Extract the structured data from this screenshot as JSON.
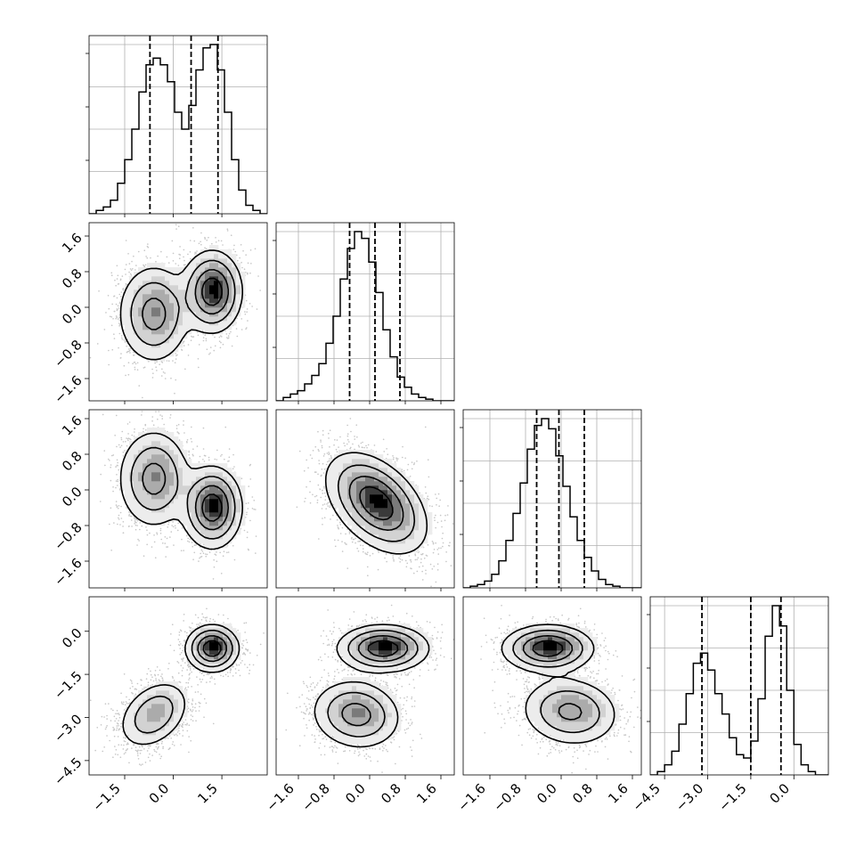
{
  "chart_data": {
    "type": "corner",
    "parameters": [
      {
        "id": "p0",
        "label": "",
        "range": [
          -2.6,
          2.9
        ],
        "ticks": [
          -1.5,
          0.0,
          1.5
        ],
        "tick_labels": [
          "−1.5",
          "0.0",
          "1.5"
        ],
        "quantiles": [
          -0.72,
          0.55,
          1.38
        ]
      },
      {
        "id": "p1",
        "label": "",
        "range": [
          -2.1,
          1.9
        ],
        "ticks": [
          -1.6,
          -0.8,
          0.0,
          0.8,
          1.6
        ],
        "tick_labels": [
          "−1.6",
          "−0.8",
          "0.0",
          "0.8",
          "1.6"
        ],
        "quantiles": [
          -0.45,
          0.12,
          0.68
        ]
      },
      {
        "id": "p2",
        "label": "",
        "range": [
          -2.2,
          1.8
        ],
        "ticks": [
          -1.6,
          -0.8,
          0.0,
          0.8,
          1.6
        ],
        "tick_labels": [
          "−1.6",
          "−0.8",
          "0.0",
          "0.8",
          "1.6"
        ],
        "quantiles": [
          -0.55,
          -0.05,
          0.52
        ]
      },
      {
        "id": "p3",
        "label": "",
        "range": [
          -5.0,
          1.2
        ],
        "ticks": [
          -4.5,
          -3.0,
          -1.5,
          0.0
        ],
        "tick_labels": [
          "−4.5",
          "−3.0",
          "−1.5",
          "0.0"
        ],
        "quantiles": [
          -3.2,
          -1.5,
          -0.45
        ]
      }
    ],
    "histograms": [
      {
        "param": "p0",
        "bin_start": -2.6,
        "bin_width": 0.22,
        "counts": [
          0,
          0.02,
          0.04,
          0.08,
          0.18,
          0.32,
          0.5,
          0.72,
          0.88,
          0.92,
          0.88,
          0.78,
          0.6,
          0.5,
          0.64,
          0.85,
          0.98,
          1.0,
          0.85,
          0.6,
          0.32,
          0.14,
          0.05,
          0.02,
          0.0
        ]
      },
      {
        "param": "p1",
        "bin_start": -2.1,
        "bin_width": 0.16,
        "counts": [
          0,
          0.02,
          0.04,
          0.06,
          0.1,
          0.15,
          0.22,
          0.34,
          0.5,
          0.72,
          0.9,
          1.0,
          0.96,
          0.82,
          0.64,
          0.42,
          0.26,
          0.14,
          0.08,
          0.04,
          0.02,
          0.01,
          0.0,
          0.0,
          0.0
        ]
      },
      {
        "param": "p2",
        "bin_start": -2.2,
        "bin_width": 0.16,
        "counts": [
          0,
          0.01,
          0.02,
          0.04,
          0.08,
          0.16,
          0.28,
          0.44,
          0.62,
          0.82,
          0.96,
          1.0,
          0.94,
          0.78,
          0.6,
          0.42,
          0.28,
          0.18,
          0.1,
          0.05,
          0.02,
          0.01,
          0.0,
          0.0,
          0.0
        ]
      },
      {
        "param": "p3",
        "bin_start": -5.0,
        "bin_width": 0.25,
        "counts": [
          0,
          0.02,
          0.06,
          0.14,
          0.3,
          0.48,
          0.66,
          0.72,
          0.62,
          0.48,
          0.36,
          0.22,
          0.12,
          0.1,
          0.2,
          0.45,
          0.82,
          1.0,
          0.88,
          0.5,
          0.18,
          0.06,
          0.02,
          0.0,
          0.0
        ]
      }
    ],
    "pairs": [
      {
        "x": "p0",
        "y": "p1",
        "modes": [
          {
            "cx": -0.6,
            "cy": -0.15,
            "sx": 0.55,
            "sy": 0.55,
            "rho": 0.0,
            "w": 0.5
          },
          {
            "cx": 1.2,
            "cy": 0.35,
            "sx": 0.45,
            "sy": 0.45,
            "rho": 0.0,
            "w": 0.5
          }
        ]
      },
      {
        "x": "p0",
        "y": "p2",
        "modes": [
          {
            "cx": -0.6,
            "cy": 0.25,
            "sx": 0.55,
            "sy": 0.55,
            "rho": 0.0,
            "w": 0.5
          },
          {
            "cx": 1.2,
            "cy": -0.4,
            "sx": 0.45,
            "sy": 0.45,
            "rho": 0.0,
            "w": 0.5
          }
        ]
      },
      {
        "x": "p1",
        "y": "p2",
        "modes": [
          {
            "cx": 0.15,
            "cy": -0.3,
            "sx": 0.55,
            "sy": 0.55,
            "rho": -0.45,
            "w": 1.0
          }
        ]
      },
      {
        "x": "p0",
        "y": "p3",
        "modes": [
          {
            "cx": -0.6,
            "cy": -2.9,
            "sx": 0.55,
            "sy": 0.6,
            "rho": 0.35,
            "w": 0.5
          },
          {
            "cx": 1.2,
            "cy": -0.6,
            "sx": 0.4,
            "sy": 0.4,
            "rho": 0.0,
            "w": 0.5
          }
        ]
      },
      {
        "x": "p1",
        "y": "p3",
        "modes": [
          {
            "cx": -0.3,
            "cy": -2.9,
            "sx": 0.5,
            "sy": 0.6,
            "rho": -0.1,
            "w": 0.5
          },
          {
            "cx": 0.3,
            "cy": -0.6,
            "sx": 0.5,
            "sy": 0.4,
            "rho": 0.0,
            "w": 0.5
          }
        ]
      },
      {
        "x": "p2",
        "y": "p3",
        "modes": [
          {
            "cx": -0.3,
            "cy": -0.6,
            "sx": 0.5,
            "sy": 0.4,
            "rho": 0.0,
            "w": 0.5
          },
          {
            "cx": 0.2,
            "cy": -2.8,
            "sx": 0.55,
            "sy": 0.6,
            "rho": -0.1,
            "w": 0.5
          }
        ]
      }
    ],
    "grid": true,
    "line_color": "#000000",
    "point_color": "#9a9a9a"
  }
}
